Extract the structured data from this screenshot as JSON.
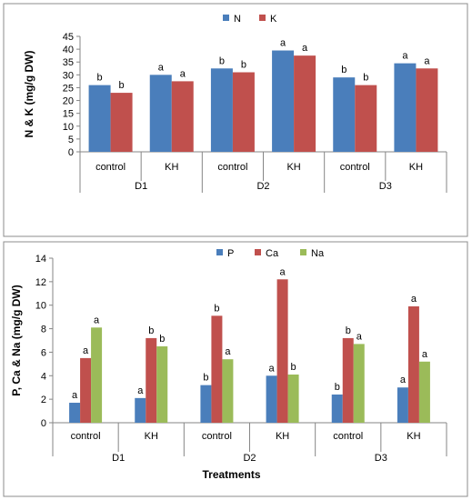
{
  "chart_data": [
    {
      "type": "bar",
      "title": "",
      "xlabel": "",
      "ylabel": "N & K (mg/g DW)",
      "ylim": [
        0,
        45
      ],
      "yticks": [
        0,
        5,
        10,
        15,
        20,
        25,
        30,
        35,
        40,
        45
      ],
      "legend_position": "top-center",
      "groups": [
        "D1",
        "D2",
        "D3"
      ],
      "categories": [
        "control",
        "KH",
        "control",
        "KH",
        "control",
        "KH"
      ],
      "series": [
        {
          "name": "N",
          "color": "#4a7ebb",
          "values": [
            26,
            30,
            32.5,
            39.5,
            29,
            34.5
          ],
          "labels": [
            "b",
            "a",
            "b",
            "a",
            "b",
            "a"
          ]
        },
        {
          "name": "K",
          "color": "#c0504d",
          "values": [
            23,
            27.5,
            31,
            37.5,
            26,
            32.5
          ],
          "labels": [
            "b",
            "a",
            "b",
            "a",
            "b",
            "a"
          ]
        }
      ]
    },
    {
      "type": "bar",
      "title": "",
      "xlabel": "Treatments",
      "ylabel": "P, Ca & Na (mg/g DW)",
      "ylim": [
        0,
        14
      ],
      "yticks": [
        0,
        2,
        4,
        6,
        8,
        10,
        12,
        14
      ],
      "legend_position": "top-center",
      "groups": [
        "D1",
        "D2",
        "D3"
      ],
      "categories": [
        "control",
        "KH",
        "control",
        "KH",
        "control",
        "KH"
      ],
      "series": [
        {
          "name": "P",
          "color": "#4a7ebb",
          "values": [
            1.7,
            2.1,
            3.2,
            4,
            2.4,
            3
          ],
          "labels": [
            "a",
            "a",
            "b",
            "a",
            "b",
            "a"
          ]
        },
        {
          "name": "Ca",
          "color": "#c0504d",
          "values": [
            5.5,
            7.2,
            9.1,
            12.2,
            7.2,
            9.9
          ],
          "labels": [
            "a",
            "b",
            "b",
            "a",
            "b",
            "a"
          ]
        },
        {
          "name": "Na",
          "color": "#9bbb59",
          "values": [
            8.1,
            6.5,
            5.4,
            4.1,
            6.7,
            5.2
          ],
          "labels": [
            "a",
            "b",
            "a",
            "b",
            "a",
            "a"
          ]
        }
      ]
    }
  ]
}
